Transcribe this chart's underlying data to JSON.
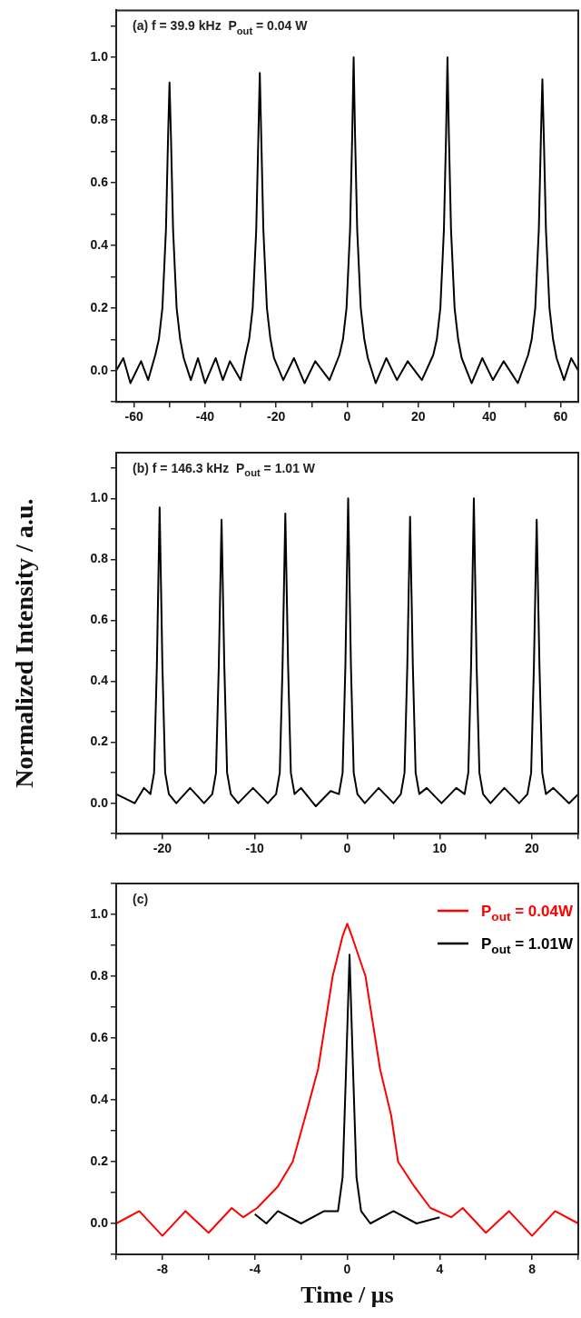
{
  "chart_data": [
    {
      "type": "line",
      "annotations": [
        "(a) f = 39.9 kHz  P$_{out}$ = 0.04 W"
      ],
      "color": "#000000",
      "x": [
        -65,
        -63,
        -61,
        -58,
        -56,
        -54,
        -53,
        -52,
        -51,
        -50.4,
        -50,
        -49.6,
        -49,
        -48,
        -47,
        -46,
        -44,
        -42,
        -40,
        -37,
        -35,
        -33,
        -30,
        -28.6,
        -27.6,
        -26.6,
        -25.6,
        -25,
        -24.6,
        -24.2,
        -23.6,
        -22.6,
        -21.6,
        -20.6,
        -18,
        -15,
        -12,
        -9,
        -5,
        -2.2,
        -1.2,
        -0.2,
        0.8,
        1.4,
        1.8,
        2.2,
        2.8,
        3.8,
        4.8,
        5.8,
        8,
        11,
        14,
        17,
        21,
        24.2,
        25.2,
        26.2,
        27.2,
        27.8,
        28.2,
        28.6,
        29.2,
        30.2,
        31.2,
        32.2,
        35,
        38,
        41,
        44,
        48,
        50.9,
        51.9,
        52.9,
        53.9,
        54.5,
        54.9,
        55.3,
        55.9,
        56.9,
        57.9,
        58.9,
        61,
        63,
        65
      ],
      "values": [
        0.0,
        0.04,
        -0.04,
        0.03,
        -0.03,
        0.05,
        0.1,
        0.2,
        0.45,
        0.75,
        0.92,
        0.75,
        0.45,
        0.2,
        0.1,
        0.04,
        -0.03,
        0.04,
        -0.04,
        0.04,
        -0.03,
        0.03,
        -0.03,
        0.05,
        0.1,
        0.2,
        0.45,
        0.75,
        0.95,
        0.75,
        0.45,
        0.2,
        0.1,
        0.04,
        -0.03,
        0.04,
        -0.04,
        0.03,
        -0.03,
        0.05,
        0.1,
        0.2,
        0.45,
        0.75,
        1.0,
        0.75,
        0.45,
        0.2,
        0.1,
        0.04,
        -0.04,
        0.04,
        -0.03,
        0.03,
        -0.03,
        0.05,
        0.1,
        0.2,
        0.45,
        0.75,
        1.0,
        0.75,
        0.45,
        0.2,
        0.1,
        0.04,
        -0.04,
        0.04,
        -0.03,
        0.03,
        -0.04,
        0.05,
        0.1,
        0.2,
        0.45,
        0.75,
        0.93,
        0.75,
        0.45,
        0.2,
        0.1,
        0.04,
        -0.03,
        0.04,
        0.0
      ],
      "xlim": [
        -65,
        65
      ],
      "xticks": [
        {
          "value": -60,
          "label": "-60"
        },
        {
          "value": -50,
          "label": null
        },
        {
          "value": -40,
          "label": "-40"
        },
        {
          "value": -30,
          "label": null
        },
        {
          "value": -20,
          "label": "-20"
        },
        {
          "value": -10,
          "label": null
        },
        0,
        {
          "value": 10,
          "label": null
        },
        20,
        {
          "value": 30,
          "label": null
        },
        40,
        {
          "value": 50,
          "label": null
        },
        60
      ],
      "ylim": [
        -0.1,
        1.15
      ],
      "yticks": [
        {
          "value": -0.1,
          "label": null
        },
        {
          "value": 0,
          "label": "0.0"
        },
        {
          "value": 0.1,
          "label": null
        },
        0.2,
        {
          "value": 0.3,
          "label": null
        },
        0.4,
        {
          "value": 0.5,
          "label": null
        },
        0.6,
        {
          "value": 0.7,
          "label": null
        },
        0.8,
        {
          "value": 0.9,
          "label": null
        },
        {
          "value": 1,
          "label": "1.0"
        },
        {
          "value": 1.1,
          "label": null
        }
      ]
    },
    {
      "type": "line",
      "ylabel": "Normalized Intensity / a.u.",
      "annotations": [
        "(b) f = 146.3 kHz  P$_{out}$ = 1.01 W"
      ],
      "color": "#000000",
      "x": [
        -25,
        -23,
        -22,
        -21.3,
        -20.9,
        -20.6,
        -20.3,
        -20,
        -19.7,
        -19.3,
        -18.5,
        -17,
        -15.5,
        -14.6,
        -14.2,
        -13.9,
        -13.6,
        -13.3,
        -13,
        -12.6,
        -11.8,
        -10.2,
        -8.6,
        -7.7,
        -7.3,
        -7,
        -6.7,
        -6.4,
        -6.1,
        -5.7,
        -5,
        -3.4,
        -1.8,
        -0.9,
        -0.5,
        -0.2,
        0.1,
        0.4,
        0.7,
        1.1,
        1.9,
        3.4,
        5,
        5.8,
        6.2,
        6.5,
        6.8,
        7.1,
        7.4,
        7.8,
        8.6,
        10.2,
        11.8,
        12.7,
        13.1,
        13.4,
        13.7,
        14,
        14.3,
        14.7,
        15.5,
        17,
        18.6,
        19.5,
        19.9,
        20.2,
        20.5,
        20.8,
        21.1,
        21.5,
        22.3,
        24,
        25
      ],
      "values": [
        0.03,
        0.0,
        0.05,
        0.03,
        0.1,
        0.45,
        0.97,
        0.45,
        0.1,
        0.03,
        0.0,
        0.05,
        0.0,
        0.03,
        0.1,
        0.45,
        0.93,
        0.45,
        0.1,
        0.03,
        0.0,
        0.05,
        0.0,
        0.03,
        0.1,
        0.45,
        0.95,
        0.45,
        0.1,
        0.03,
        0.05,
        -0.01,
        0.04,
        0.03,
        0.1,
        0.45,
        1.0,
        0.45,
        0.1,
        0.03,
        0.0,
        0.05,
        0.0,
        0.03,
        0.1,
        0.45,
        0.94,
        0.45,
        0.1,
        0.03,
        0.05,
        0.0,
        0.05,
        0.03,
        0.1,
        0.45,
        1.0,
        0.45,
        0.1,
        0.03,
        0.0,
        0.05,
        0.0,
        0.03,
        0.1,
        0.45,
        0.93,
        0.45,
        0.1,
        0.03,
        0.05,
        0.0,
        0.03
      ],
      "xlim": [
        -25,
        25
      ],
      "xticks": [
        {
          "value": -25,
          "label": null
        },
        {
          "value": -20,
          "label": "-20"
        },
        {
          "value": -15,
          "label": null
        },
        {
          "value": -10,
          "label": "-10"
        },
        {
          "value": -5,
          "label": null
        },
        0,
        {
          "value": 5,
          "label": null
        },
        10,
        {
          "value": 15,
          "label": null
        },
        20,
        {
          "value": 25,
          "label": null
        }
      ],
      "ylim": [
        -0.1,
        1.15
      ],
      "yticks": [
        {
          "value": -0.1,
          "label": null
        },
        {
          "value": 0,
          "label": "0.0"
        },
        {
          "value": 0.1,
          "label": null
        },
        0.2,
        {
          "value": 0.3,
          "label": null
        },
        0.4,
        {
          "value": 0.5,
          "label": null
        },
        0.6,
        {
          "value": 0.7,
          "label": null
        },
        0.8,
        {
          "value": 0.9,
          "label": null
        },
        {
          "value": 1,
          "label": "1.0"
        },
        {
          "value": 1.1,
          "label": null
        }
      ]
    },
    {
      "type": "line",
      "xlabel": "Time / μs",
      "annotations": [
        "(c)"
      ],
      "legend": "top right",
      "series": [
        {
          "name": "P$_{out}$ = 0.04W",
          "color": "#ff0000",
          "x": [
            -10,
            -9,
            -8,
            -7,
            -6,
            -5,
            -4.5,
            -3.9,
            -3,
            -2.36,
            -1.8,
            -1.26,
            -0.63,
            -0.2,
            0,
            0.2,
            0.79,
            1.42,
            1.9,
            2.2,
            2.9,
            3.6,
            4.5,
            5,
            6,
            7,
            8,
            9,
            10
          ],
          "values": [
            0.0,
            0.04,
            -0.04,
            0.04,
            -0.03,
            0.05,
            0.02,
            0.05,
            0.12,
            0.2,
            0.35,
            0.5,
            0.8,
            0.93,
            0.97,
            0.93,
            0.8,
            0.5,
            0.35,
            0.2,
            0.12,
            0.05,
            0.02,
            0.05,
            -0.03,
            0.04,
            -0.04,
            0.04,
            0.0
          ]
        },
        {
          "name": "P$_{out}$ = 1.01W",
          "color": "#000000",
          "x": [
            -4,
            -3.5,
            -3,
            -2,
            -1,
            -0.4,
            -0.2,
            -0.05,
            0.1,
            0.25,
            0.4,
            0.6,
            1,
            2,
            3,
            4
          ],
          "values": [
            0.03,
            0.0,
            0.04,
            0.0,
            0.04,
            0.04,
            0.15,
            0.5,
            0.87,
            0.5,
            0.15,
            0.04,
            0.0,
            0.04,
            0.0,
            0.02
          ]
        }
      ],
      "xlim": [
        -10,
        10
      ],
      "xticks": [
        {
          "value": -10,
          "label": null
        },
        {
          "value": -8,
          "label": "-8"
        },
        {
          "value": -6,
          "label": null
        },
        {
          "value": -4,
          "label": "-4"
        },
        {
          "value": -2,
          "label": null
        },
        0,
        {
          "value": 2,
          "label": null
        },
        4,
        {
          "value": 6,
          "label": null
        },
        8,
        {
          "value": 10,
          "label": null
        }
      ],
      "ylim": [
        -0.1,
        1.1
      ],
      "yticks": [
        {
          "value": -0.1,
          "label": null
        },
        {
          "value": 0,
          "label": "0.0"
        },
        {
          "value": 0.1,
          "label": null
        },
        0.2,
        {
          "value": 0.3,
          "label": null
        },
        0.4,
        {
          "value": 0.5,
          "label": null
        },
        0.6,
        {
          "value": 0.7,
          "label": null
        },
        0.8,
        {
          "value": 0.9,
          "label": null
        },
        {
          "value": 1,
          "label": "1.0"
        },
        {
          "value": 1.1,
          "label": null
        }
      ]
    }
  ]
}
